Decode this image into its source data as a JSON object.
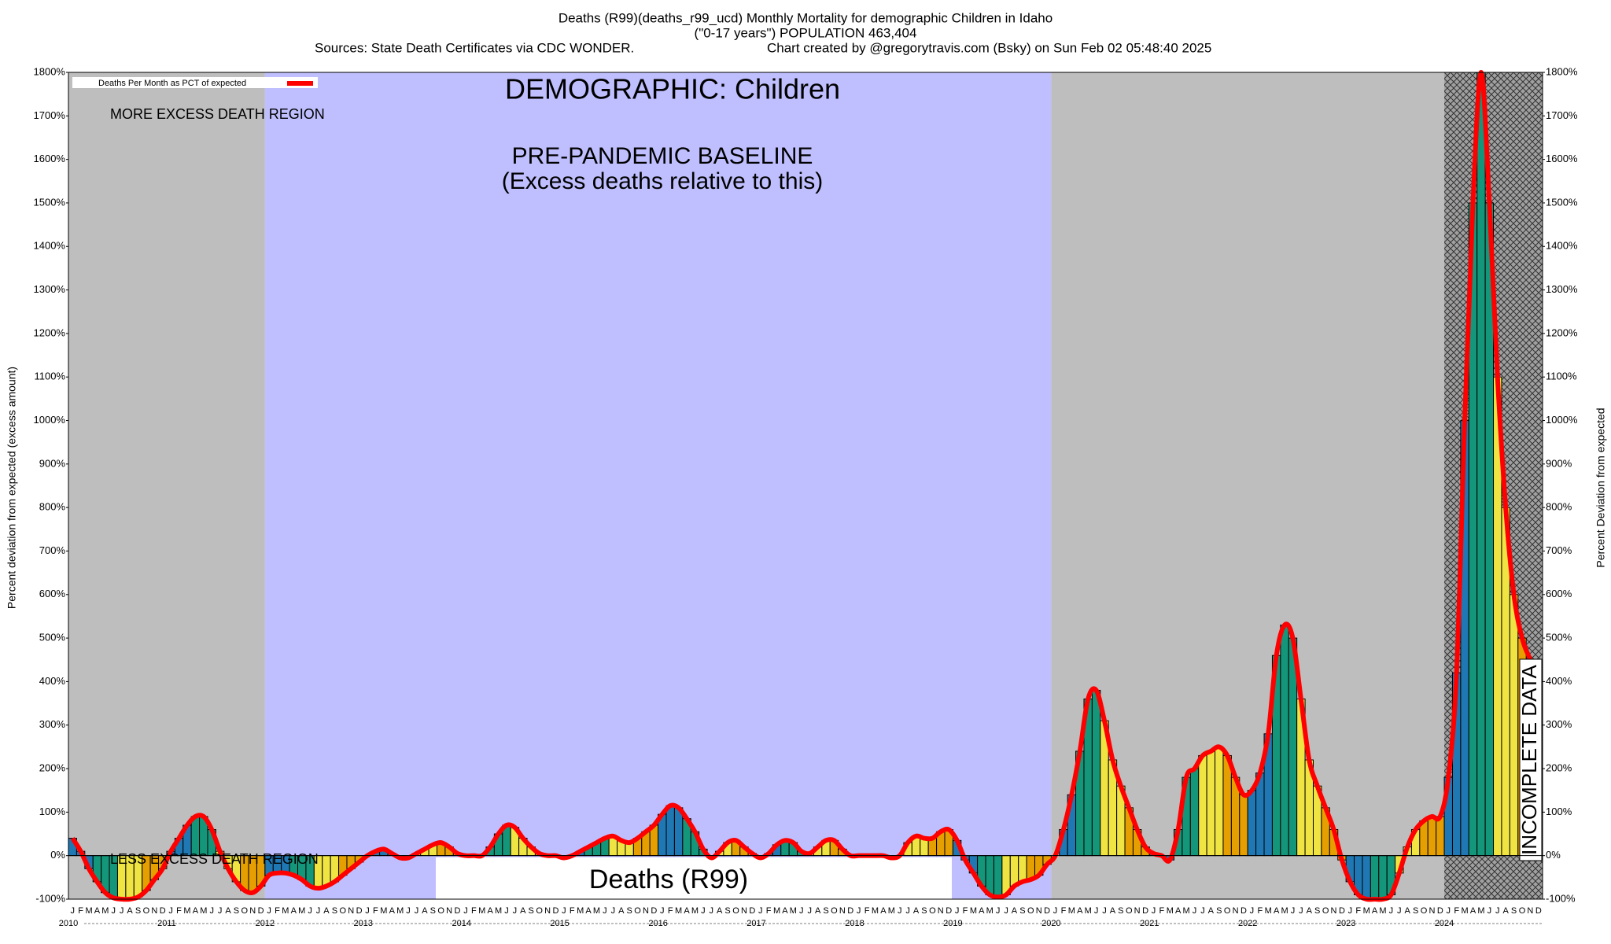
{
  "chart_data": {
    "type": "bar",
    "title": "Deaths (R99)(deaths_r99_ucd) Monthly Mortality for demographic Children in Idaho",
    "subtitle": "(\"0-17 years\") POPULATION 463,404",
    "source": "Sources: State Death Certificates via CDC WONDER.",
    "credit": "Chart created by @gregorytravis.com (Bsky) on Sun Feb 02 05:48:40 2025",
    "y_label": "Percent deviation from expected (excess amount)",
    "y2_label": "Percent Deviation from expected",
    "legend_label": "Deaths Per Month as PCT of expected",
    "line_color": "#ff0000",
    "annotations": {
      "demographic": "DEMOGRAPHIC: Children",
      "baseline": "PRE-PANDEMIC BASELINE",
      "baseline_note": "(Excess deaths relative to this)",
      "more": "MORE EXCESS DEATH REGION",
      "less": "LESS EXCESS DEATH REGION",
      "cause": "Deaths (R99)",
      "incomplete": "INCOMPLETE DATA"
    },
    "regions": [
      {
        "start": "2010",
        "end": "2012",
        "color": "#bebebe"
      },
      {
        "start": "2012",
        "end": "2020",
        "color": "#bfbfff"
      },
      {
        "start": "2020",
        "end": null,
        "color": "#bebebe"
      }
    ],
    "incomplete_start": "2024",
    "years": [
      "2010",
      "2011",
      "2012",
      "2013",
      "2014",
      "2015",
      "2016",
      "2017",
      "2018",
      "2019",
      "2020",
      "2021",
      "2022",
      "2023",
      "2024"
    ],
    "months": [
      "J",
      "F",
      "M",
      "A",
      "M",
      "J",
      "J",
      "A",
      "S",
      "O",
      "N",
      "D"
    ],
    "season_colors": [
      "#1f78b4",
      "#14967a",
      "#f0e442",
      "#e69f00"
    ],
    "values": [
      40,
      10,
      -30,
      -60,
      -85,
      -97,
      -100,
      -100,
      -95,
      -80,
      -55,
      -30,
      10,
      40,
      70,
      90,
      90,
      60,
      10,
      -30,
      -60,
      -80,
      -85,
      -70,
      -45,
      -40,
      -40,
      -45,
      -55,
      -70,
      -75,
      -70,
      -60,
      -45,
      -30,
      -15,
      0,
      10,
      15,
      5,
      -5,
      -5,
      5,
      15,
      25,
      30,
      20,
      5,
      0,
      0,
      0,
      20,
      50,
      70,
      65,
      40,
      20,
      5,
      0,
      0,
      -5,
      0,
      10,
      20,
      30,
      40,
      45,
      35,
      30,
      40,
      55,
      70,
      95,
      115,
      110,
      85,
      55,
      15,
      -5,
      10,
      30,
      35,
      20,
      5,
      -5,
      5,
      25,
      35,
      30,
      10,
      5,
      20,
      35,
      35,
      15,
      0,
      0,
      0,
      0,
      0,
      -5,
      0,
      30,
      45,
      40,
      40,
      55,
      60,
      35,
      -10,
      -40,
      -70,
      -90,
      -95,
      -90,
      -70,
      -60,
      -55,
      -45,
      -20,
      0,
      60,
      140,
      240,
      360,
      380,
      310,
      220,
      160,
      110,
      60,
      20,
      5,
      0,
      -10,
      60,
      180,
      200,
      230,
      240,
      250,
      230,
      180,
      140,
      150,
      190,
      280,
      460,
      530,
      500,
      360,
      220,
      160,
      110,
      60,
      -10,
      -60,
      -90,
      -100,
      -100,
      -100,
      -90,
      -40,
      20,
      60,
      80,
      90,
      90,
      180,
      420,
      1000,
      1500,
      1800,
      1500,
      1100,
      800,
      600,
      500,
      450,
      400
    ],
    "ylim": [
      -100,
      1800
    ],
    "yticks": [
      {
        "value": -100,
        "label": "-100%"
      },
      {
        "value": 0,
        "label": "0%"
      },
      {
        "value": 100,
        "label": "100%"
      },
      {
        "value": 200,
        "label": "200%"
      },
      {
        "value": 300,
        "label": "300%"
      },
      {
        "value": 400,
        "label": "400%"
      },
      {
        "value": 500,
        "label": "500%"
      },
      {
        "value": 600,
        "label": "600%"
      },
      {
        "value": 700,
        "label": "700%"
      },
      {
        "value": 800,
        "label": "800%"
      },
      {
        "value": 900,
        "label": "900%"
      },
      {
        "value": 1000,
        "label": "1000%"
      },
      {
        "value": 1100,
        "label": "1100%"
      },
      {
        "value": 1200,
        "label": "1200%"
      },
      {
        "value": 1300,
        "label": "1300%"
      },
      {
        "value": 1400,
        "label": "1400%"
      },
      {
        "value": 1500,
        "label": "1500%"
      },
      {
        "value": 1600,
        "label": "1600%"
      },
      {
        "value": 1700,
        "label": "1700%"
      },
      {
        "value": 1800,
        "label": "1800%"
      }
    ]
  }
}
